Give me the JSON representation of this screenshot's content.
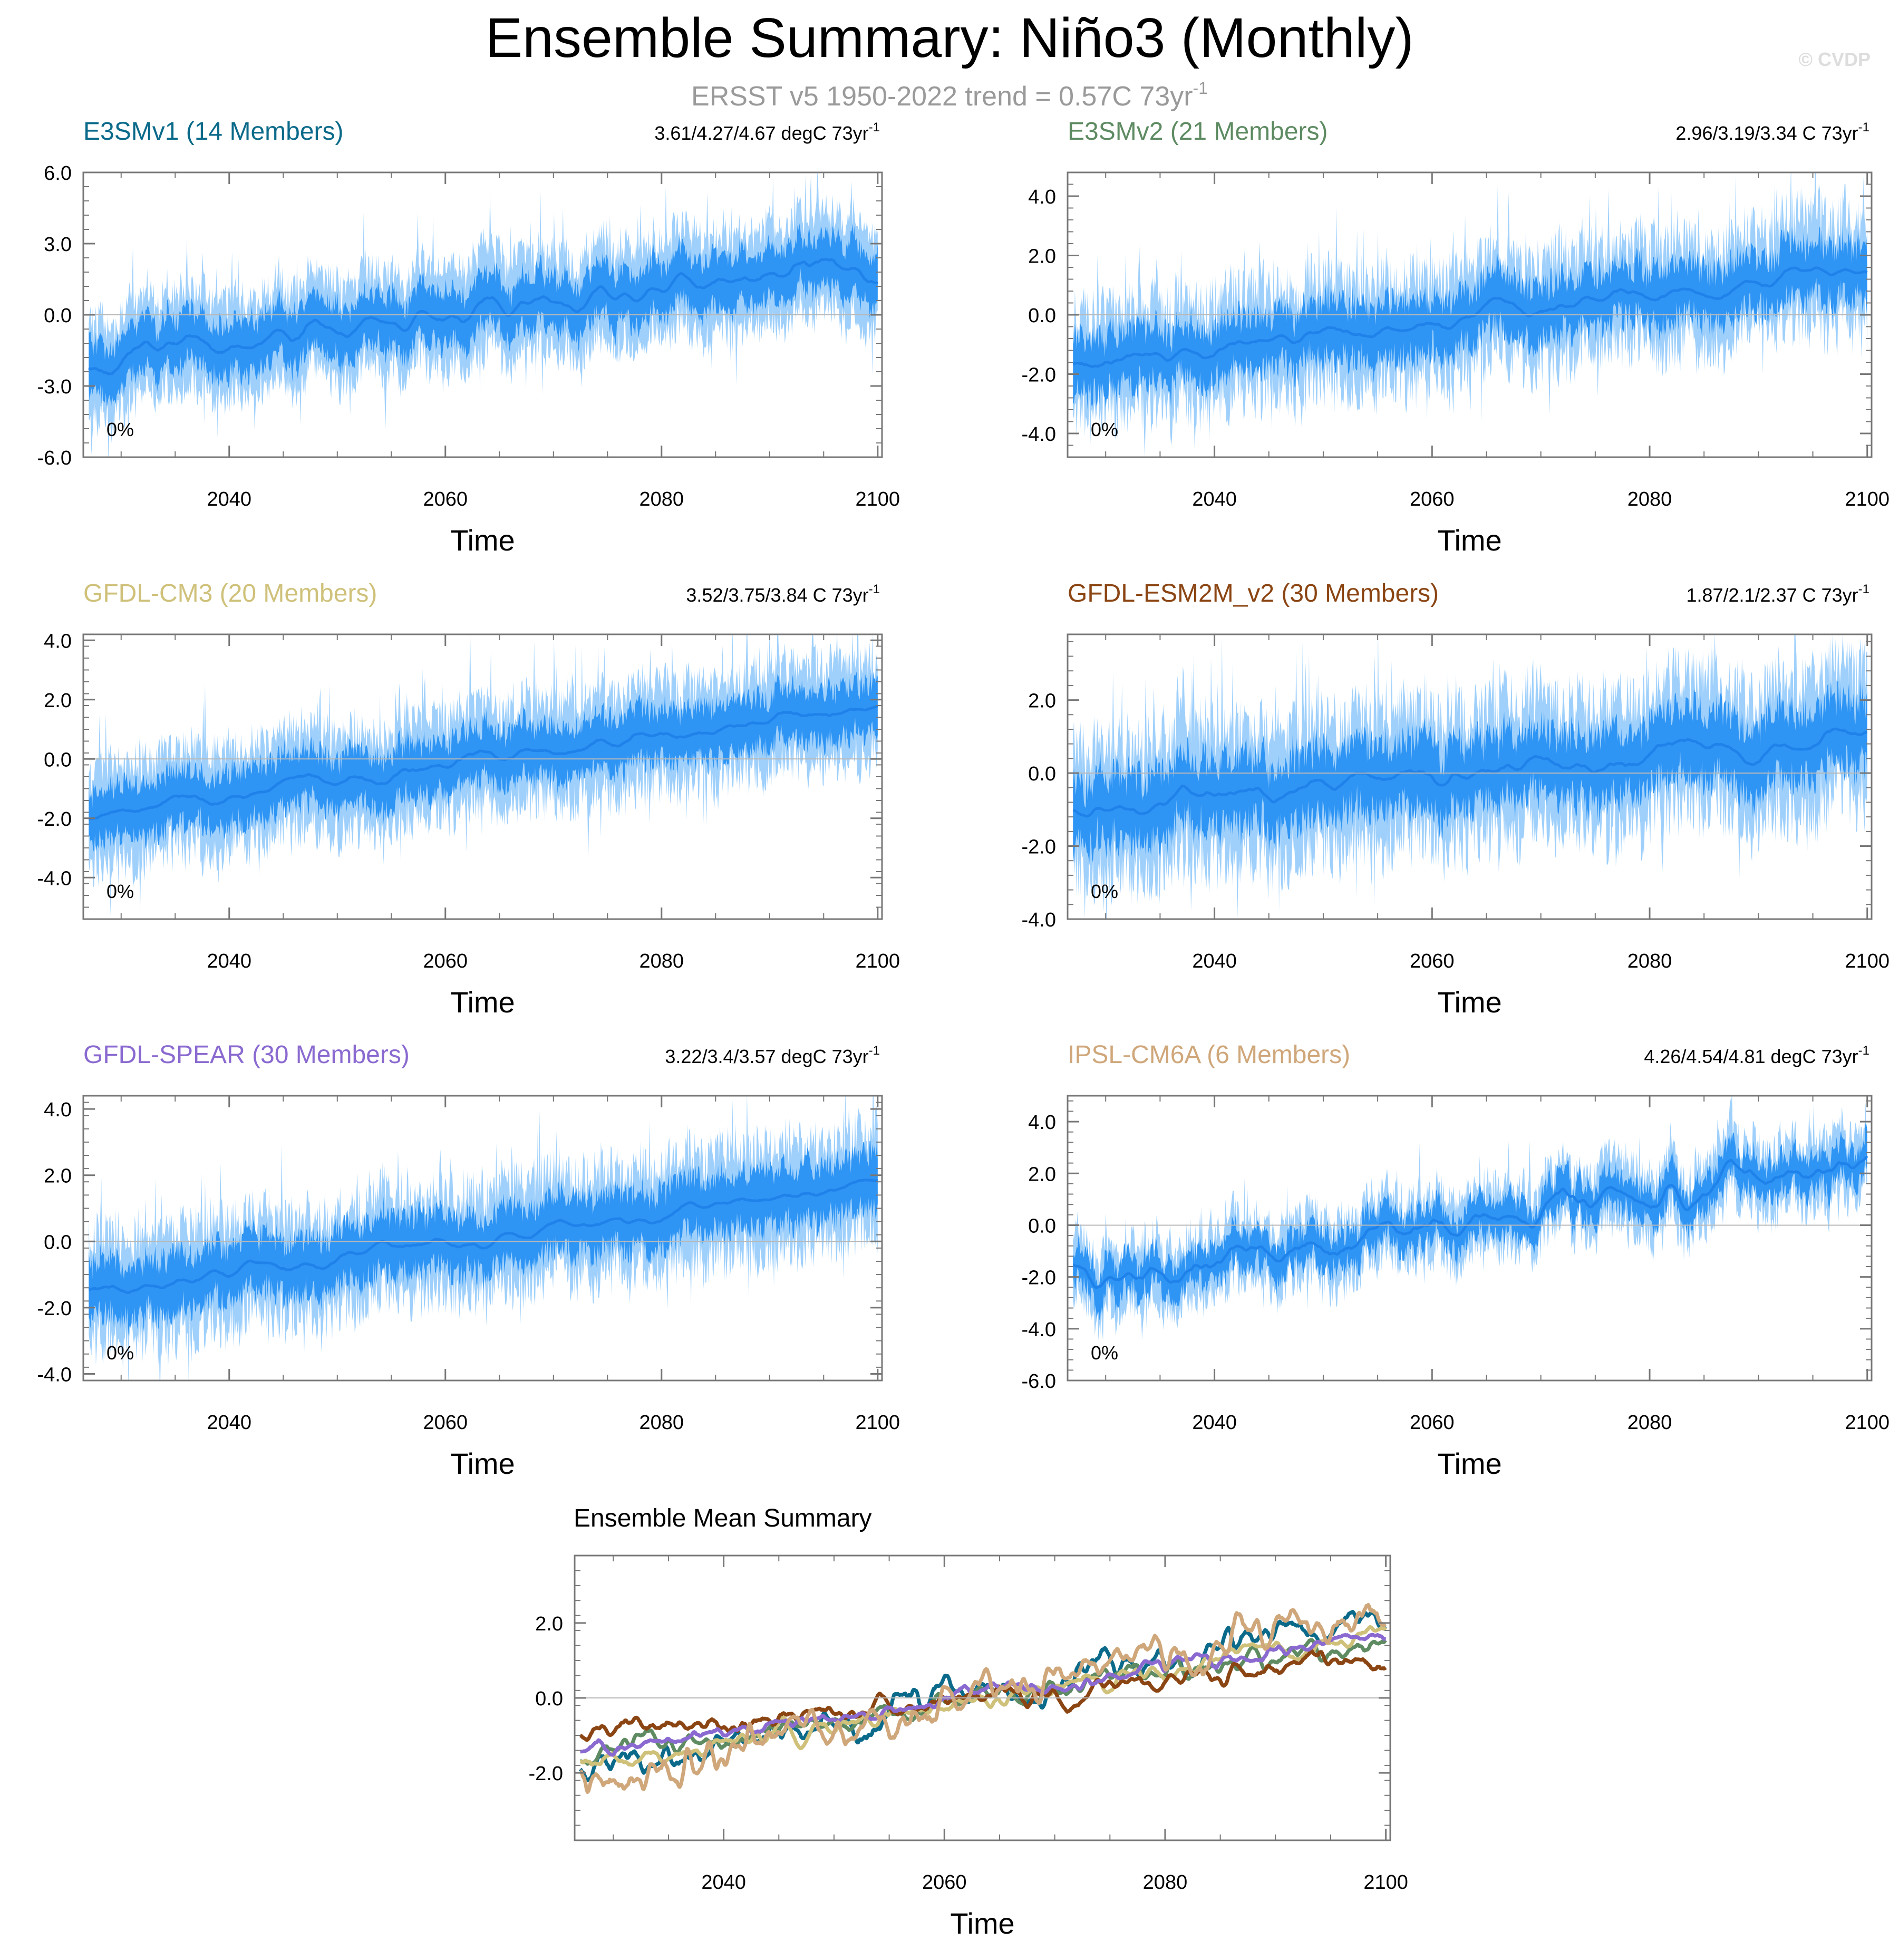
{
  "figure": {
    "title": "Ensemble Summary: Niño3 (Monthly)",
    "subtitle": "ERSST v5 1950-2022 trend = 0.57C 73yr",
    "subtitle_sup": "-1",
    "watermark": "© CVDP",
    "x_axis_label": "Time",
    "colors": {
      "band_outer": "#9fd0fb",
      "band_inner": "#2f95f4",
      "mean_line": "#1f82ea",
      "zero_line": "#b8b8b8",
      "axis": "#777777"
    }
  },
  "chart_data": [
    {
      "type": "area",
      "model": "E3SMv1",
      "title": "E3SMv1 (14 Members)",
      "title_color": "#0b6a8a",
      "trend_label": "3.61/4.27/4.67 degC 73yr",
      "trend_sup": "-1",
      "percent_label": "0%",
      "xlabel": "Time",
      "xlim": [
        2026.5,
        2100.4
      ],
      "xticks": [
        2040,
        2060,
        2080,
        2100
      ],
      "ylim": [
        -6.0,
        6.0
      ],
      "yticks": [
        -6.0,
        -3.0,
        0.0,
        3.0,
        6.0
      ],
      "ytick_labels": [
        "-6.0",
        "-3.0",
        "0.0",
        "3.0",
        "6.0"
      ],
      "series": [
        {
          "name": "ensemble mean",
          "x": [
            2027,
            2100
          ],
          "y": [
            -2.0,
            2.2
          ]
        }
      ],
      "mean_trend": {
        "start": -2.0,
        "end": 2.2,
        "osc": 0.6
      },
      "spread": {
        "inner": 0.9,
        "outer": 1.8,
        "noise": 0.7
      },
      "seed": 11
    },
    {
      "type": "area",
      "model": "E3SMv2",
      "title": "E3SMv2 (21 Members)",
      "title_color": "#5e8b62",
      "trend_label": "2.96/3.19/3.34 C 73yr",
      "trend_sup": "-1",
      "percent_label": "0%",
      "xlabel": "Time",
      "xlim": [
        2026.5,
        2100.4
      ],
      "xticks": [
        2040,
        2060,
        2080,
        2100
      ],
      "ylim": [
        -4.8,
        4.8
      ],
      "yticks": [
        -4.0,
        -2.0,
        0.0,
        2.0,
        4.0
      ],
      "ytick_labels": [
        "-4.0",
        "-2.0",
        "0.0",
        "2.0",
        "4.0"
      ],
      "series": [
        {
          "name": "ensemble mean",
          "x": [
            2027,
            2100
          ],
          "y": [
            -1.6,
            1.5
          ]
        }
      ],
      "mean_trend": {
        "start": -1.6,
        "end": 1.5,
        "osc": 0.35
      },
      "spread": {
        "inner": 0.7,
        "outer": 1.4,
        "noise": 0.9
      },
      "seed": 23
    },
    {
      "type": "area",
      "model": "GFDL-CM3",
      "title": "GFDL-CM3 (20 Members)",
      "title_color": "#cfc17a",
      "trend_label": "3.52/3.75/3.84 C 73yr",
      "trend_sup": "-1",
      "percent_label": "0%",
      "xlabel": "Time",
      "xlim": [
        2026.5,
        2100.4
      ],
      "xticks": [
        2040,
        2060,
        2080,
        2100
      ],
      "ylim": [
        -5.4,
        4.2
      ],
      "yticks": [
        -4.0,
        -2.0,
        0.0,
        2.0,
        4.0
      ],
      "ytick_labels": [
        "-4.0",
        "-2.0",
        "0.0",
        "2.0",
        "4.0"
      ],
      "series": [
        {
          "name": "ensemble mean",
          "x": [
            2027,
            2100
          ],
          "y": [
            -1.9,
            1.8
          ]
        }
      ],
      "mean_trend": {
        "start": -1.9,
        "end": 1.8,
        "osc": 0.3
      },
      "spread": {
        "inner": 0.7,
        "outer": 1.4,
        "noise": 0.7
      },
      "seed": 37
    },
    {
      "type": "area",
      "model": "GFDL-ESM2M_v2",
      "title": "GFDL-ESM2M_v2 (30 Members)",
      "title_color": "#8b4513",
      "trend_label": "1.87/2.1/2.37 C 73yr",
      "trend_sup": "-1",
      "percent_label": "0%",
      "xlabel": "Time",
      "xlim": [
        2026.5,
        2100.4
      ],
      "xticks": [
        2040,
        2060,
        2080,
        2100
      ],
      "ylim": [
        -4.0,
        3.8
      ],
      "yticks": [
        -4.0,
        -2.0,
        0.0,
        2.0
      ],
      "ytick_labels": [
        "-4.0",
        "-2.0",
        "0.0",
        "2.0"
      ],
      "series": [
        {
          "name": "ensemble mean",
          "x": [
            2027,
            2100
          ],
          "y": [
            -1.0,
            1.0
          ]
        }
      ],
      "mean_trend": {
        "start": -1.0,
        "end": 1.0,
        "osc": 0.35
      },
      "spread": {
        "inner": 0.7,
        "outer": 1.5,
        "noise": 0.8
      },
      "seed": 53
    },
    {
      "type": "area",
      "model": "GFDL-SPEAR",
      "title": "GFDL-SPEAR (30 Members)",
      "title_color": "#8a6ad0",
      "trend_label": "3.22/3.4/3.57 degC 73yr",
      "trend_sup": "-1",
      "percent_label": "0%",
      "xlabel": "Time",
      "xlim": [
        2026.5,
        2100.4
      ],
      "xticks": [
        2040,
        2060,
        2080,
        2100
      ],
      "ylim": [
        -4.2,
        4.4
      ],
      "yticks": [
        -4.0,
        -2.0,
        0.0,
        2.0,
        4.0
      ],
      "ytick_labels": [
        "-4.0",
        "-2.0",
        "0.0",
        "2.0",
        "4.0"
      ],
      "series": [
        {
          "name": "ensemble mean",
          "x": [
            2027,
            2100
          ],
          "y": [
            -1.5,
            1.7
          ]
        }
      ],
      "mean_trend": {
        "start": -1.5,
        "end": 1.7,
        "osc": 0.25
      },
      "spread": {
        "inner": 0.65,
        "outer": 1.3,
        "noise": 0.7
      },
      "seed": 71
    },
    {
      "type": "area",
      "model": "IPSL-CM6A",
      "title": "IPSL-CM6A (6 Members)",
      "title_color": "#cfa77a",
      "trend_label": "4.26/4.54/4.81 degC 73yr",
      "trend_sup": "-1",
      "percent_label": "0%",
      "xlabel": "Time",
      "xlim": [
        2026.5,
        2100.4
      ],
      "xticks": [
        2040,
        2060,
        2080,
        2100
      ],
      "ylim": [
        -6.0,
        5.0
      ],
      "yticks": [
        -6.0,
        -4.0,
        -2.0,
        0.0,
        2.0,
        4.0
      ],
      "ytick_labels": [
        "-6.0",
        "-4.0",
        "-2.0",
        "0.0",
        "2.0",
        "4.0"
      ],
      "series": [
        {
          "name": "ensemble mean",
          "x": [
            2027,
            2100
          ],
          "y": [
            -2.3,
            2.6
          ]
        }
      ],
      "mean_trend": {
        "start": -2.3,
        "end": 2.6,
        "osc": 0.7
      },
      "spread": {
        "inner": 0.5,
        "outer": 1.0,
        "noise": 0.6
      },
      "seed": 89
    },
    {
      "type": "line",
      "title": "Ensemble Mean Summary",
      "xlabel": "Time",
      "xlim": [
        2026.5,
        2100.4
      ],
      "xticks": [
        2040,
        2060,
        2080,
        2100
      ],
      "ylim": [
        -3.8,
        3.8
      ],
      "yticks": [
        -2.0,
        0.0,
        2.0
      ],
      "ytick_labels": [
        "-2.0",
        "0.0",
        "2.0"
      ],
      "series": [
        {
          "name": "E3SMv1",
          "color": "#0b6a8a",
          "start": -2.0,
          "end": 2.2,
          "osc": 0.55,
          "seed": 101
        },
        {
          "name": "E3SMv2",
          "color": "#5e8b62",
          "start": -1.6,
          "end": 1.5,
          "osc": 0.35,
          "seed": 113
        },
        {
          "name": "GFDL-CM3",
          "color": "#cfc17a",
          "start": -1.9,
          "end": 1.8,
          "osc": 0.3,
          "seed": 127
        },
        {
          "name": "GFDL-ESM2M_v2",
          "color": "#8b4513",
          "start": -1.0,
          "end": 1.0,
          "osc": 0.35,
          "seed": 131
        },
        {
          "name": "GFDL-SPEAR",
          "color": "#8a6ad0",
          "start": -1.5,
          "end": 1.7,
          "osc": 0.25,
          "seed": 149
        },
        {
          "name": "IPSL-CM6A",
          "color": "#cfa77a",
          "start": -2.3,
          "end": 2.6,
          "osc": 0.7,
          "seed": 157
        }
      ]
    }
  ]
}
